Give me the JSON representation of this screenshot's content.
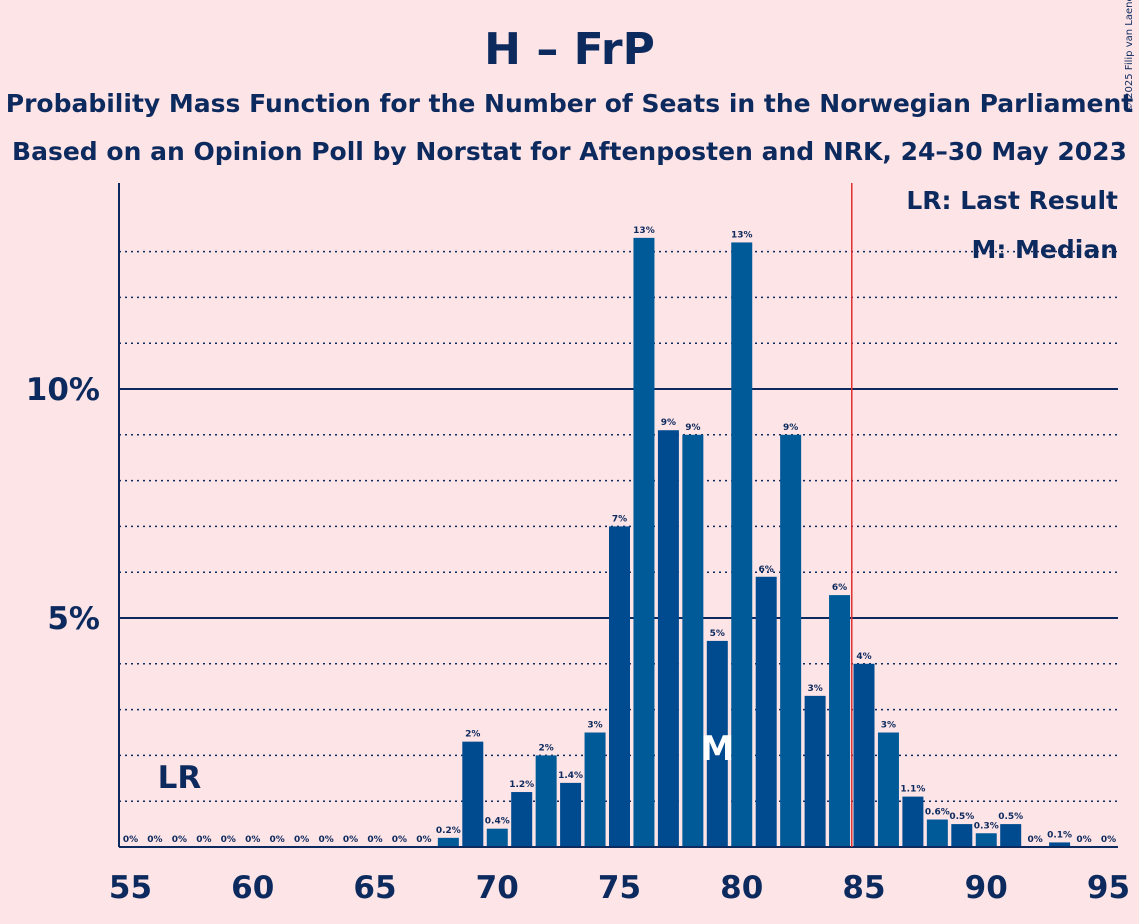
{
  "title": "H – FrP",
  "subtitle1": "Probability Mass Function for the Number of Seats in the Norwegian Parliament",
  "subtitle2": "Based on an Opinion Poll by Norstat for Aftenposten and NRK, 24–30 May 2023",
  "copyright": "© 2025 Filip van Laenen",
  "legend": {
    "last_result": "LR: Last Result",
    "median": "M: Median"
  },
  "markers": {
    "last_result_label": "LR",
    "last_result_seat": 57,
    "median_label": "M",
    "median_seat": 79,
    "majority_line_seat": 84.5
  },
  "colors": {
    "background": "#FDE4E6",
    "bar_a": "#005A97",
    "bar_b": "#004B8F",
    "axis": "#0D2A5E",
    "majority_line": "#E03030"
  },
  "chart_data": {
    "type": "bar",
    "x": [
      55,
      56,
      57,
      58,
      59,
      60,
      61,
      62,
      63,
      64,
      65,
      66,
      67,
      68,
      69,
      70,
      71,
      72,
      73,
      74,
      75,
      76,
      77,
      78,
      79,
      80,
      81,
      82,
      83,
      84,
      85,
      86,
      87,
      88,
      89,
      90,
      91,
      92,
      93,
      94,
      95
    ],
    "values": [
      0,
      0,
      0,
      0,
      0,
      0,
      0,
      0,
      0,
      0,
      0,
      0,
      0,
      0.2,
      2.3,
      0.4,
      1.2,
      2.0,
      1.4,
      2.5,
      7.0,
      13.3,
      9.1,
      9.0,
      4.5,
      13.2,
      5.9,
      9.0,
      3.3,
      5.5,
      4.0,
      2.5,
      1.1,
      0.6,
      0.5,
      0.3,
      0.5,
      0,
      0.1,
      0,
      0
    ],
    "labels": [
      "0%",
      "0%",
      "0%",
      "0%",
      "0%",
      "0%",
      "0%",
      "0%",
      "0%",
      "0%",
      "0%",
      "0%",
      "0%",
      "0.2%",
      "2%",
      "0.4%",
      "1.2%",
      "2%",
      "1.4%",
      "3%",
      "7%",
      "13%",
      "9%",
      "9%",
      "5%",
      "13%",
      "6%",
      "9%",
      "3%",
      "6%",
      "4%",
      "3%",
      "1.1%",
      "0.6%",
      "0.5%",
      "0.3%",
      "0.5%",
      "0%",
      "0.1%",
      "0%",
      "0%"
    ],
    "x_ticks": [
      "55",
      "60",
      "65",
      "70",
      "75",
      "80",
      "85",
      "90",
      "95"
    ],
    "y_ticks": [
      "5%",
      "10%"
    ],
    "ylim": [
      0,
      14.5
    ]
  }
}
